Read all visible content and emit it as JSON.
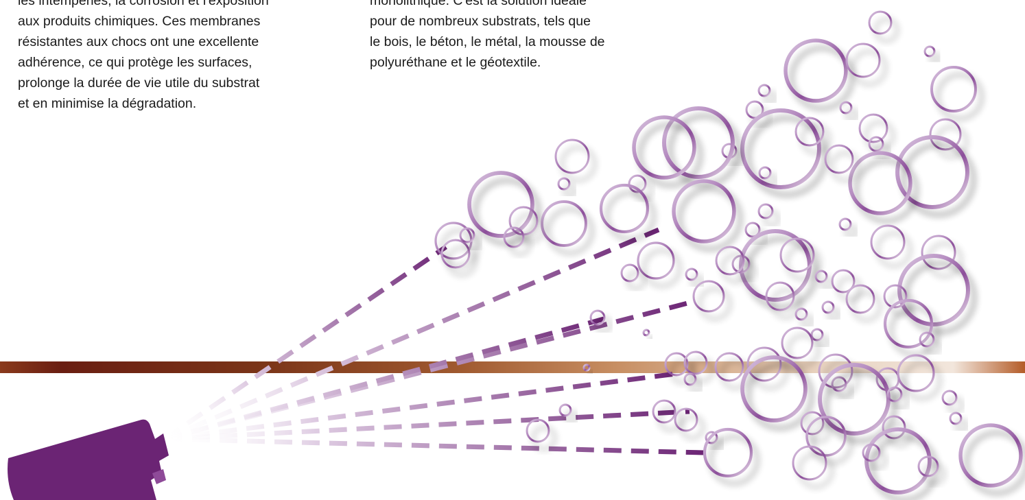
{
  "text_left": {
    "lines": [
      "les intempéries, la corrosion et l'exposition",
      "aux produits chimiques. Ces membranes",
      "résistantes aux chocs ont une excellente",
      "adhérence, ce qui protège les surfaces,",
      "prolonge la durée de vie utile du substrat",
      "et en minimise la dégradation."
    ]
  },
  "text_right": {
    "lines": [
      "monolithique. C'est la solution idéale",
      "pour de nombreux substrats, tels que",
      "le bois, le béton, le métal, la mousse de",
      "polyuréthane et le géotextile."
    ]
  },
  "illustration": {
    "icon": "spray-gun-icon",
    "colors": {
      "purple": "#6b2474",
      "bubble_stroke": "#9a63a8",
      "band_dark": "#6e2b14",
      "band_light": "#c9946a"
    }
  }
}
